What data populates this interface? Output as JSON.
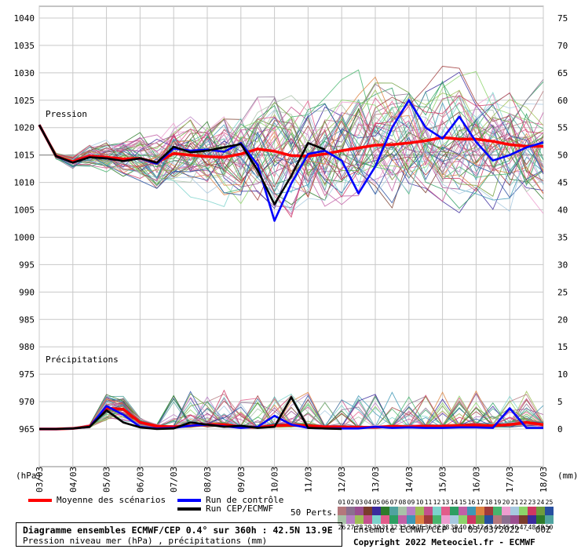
{
  "chart_data": {
    "type": "line",
    "title": "Diagramme ensembles ECMWF/CEP 0.4° sur 360h : 42.5N 13.9E",
    "subtitle": "Pression niveau mer (hPa) , précipitations (mm)",
    "run_info": "Ensemble ECMWF/CEP du 03/03/2022 - 00Z",
    "copyright": "Copyright 2022 Meteociel.fr - ECMWF",
    "left_axis_unit": "(hPa)",
    "right_axis_unit": "(mm)",
    "panel_label_pressure": "Pression",
    "panel_label_precip": "Précipitations",
    "x_ticks": [
      "03/03",
      "04/03",
      "05/03",
      "06/03",
      "07/03",
      "08/03",
      "09/03",
      "10/03",
      "11/03",
      "12/03",
      "13/03",
      "14/03",
      "15/03",
      "16/03",
      "17/03",
      "18/03"
    ],
    "left_ticks": [
      965,
      970,
      975,
      980,
      985,
      990,
      995,
      1000,
      1005,
      1010,
      1015,
      1020,
      1025,
      1030,
      1035,
      1040
    ],
    "right_ticks": [
      0,
      5,
      10,
      15,
      20,
      25,
      30,
      35,
      40,
      45,
      50,
      55,
      60,
      65,
      70,
      75
    ],
    "pressure_ylim": [
      965,
      1040
    ],
    "precip_ylim": [
      0,
      15
    ],
    "days_x": [
      0,
      0.5,
      1,
      1.5,
      2,
      2.5,
      3,
      3.5,
      4,
      4.5,
      5,
      5.5,
      6,
      6.5,
      7,
      7.5,
      8,
      8.5,
      9,
      9.5,
      10,
      10.5,
      11,
      11.5,
      12,
      12.5,
      13,
      13.5,
      14,
      14.5,
      15
    ],
    "series": [
      {
        "name": "Moyenne des scénarios",
        "color": "#ff0000",
        "panel": "pressure",
        "values": [
          1020.5,
          1014.8,
          1013.8,
          1014.8,
          1014.6,
          1014.3,
          1014.4,
          1013.6,
          1015.3,
          1015.0,
          1014.7,
          1014.6,
          1015.2,
          1016.1,
          1015.7,
          1014.9,
          1014.8,
          1015.2,
          1015.8,
          1016.3,
          1016.8,
          1016.9,
          1017.2,
          1017.6,
          1018.2,
          1017.9,
          1017.9,
          1017.5,
          1016.9,
          1016.6,
          1016.6
        ]
      },
      {
        "name": "Run de contrôle",
        "color": "#0000ff",
        "panel": "pressure",
        "values": [
          1020.5,
          1014.8,
          1013.6,
          1014.6,
          1014.4,
          1013.9,
          1014.4,
          1013.4,
          1016.2,
          1015.8,
          1016.0,
          1015.6,
          1017.2,
          1013.2,
          1003.0,
          1009.8,
          1015.2,
          1015.8,
          1014.0,
          1008.0,
          1012.9,
          1020.0,
          1025.0,
          1020.0,
          1018.0,
          1022.0,
          1017.4,
          1014.0,
          1015.0,
          1016.4,
          1017.3
        ]
      },
      {
        "name": "Run CEP/ECMWF",
        "color": "#000000",
        "panel": "pressure",
        "values": [
          1020.5,
          1014.8,
          1013.6,
          1014.6,
          1014.4,
          1013.9,
          1014.4,
          1013.6,
          1016.5,
          1015.5,
          1015.8,
          1016.4,
          1017.0,
          1012.2,
          1006.0,
          1011.2,
          1017.2,
          1016.0
        ]
      },
      {
        "name": "Moyenne des scénarios",
        "color": "#ff0000",
        "panel": "precip",
        "values": [
          0,
          0,
          0.1,
          0.5,
          3.8,
          3.6,
          1.2,
          0.5,
          0.4,
          0.6,
          0.8,
          0.8,
          0.4,
          0.3,
          0.6,
          0.7,
          0.6,
          0.4,
          0.4,
          0.3,
          0.3,
          0.5,
          0.4,
          0.5,
          0.5,
          0.6,
          0.7,
          0.6,
          0.8,
          1.2,
          0.8
        ]
      },
      {
        "name": "Run de contrôle",
        "color": "#0000ff",
        "panel": "precip",
        "values": [
          0,
          0,
          0.1,
          0.4,
          4.2,
          2.6,
          0.4,
          0.1,
          0.2,
          0.6,
          0.8,
          0.5,
          0.2,
          0.4,
          2.4,
          0.8,
          0.2,
          0.1,
          0.1,
          0.1,
          0.4,
          0.2,
          0.3,
          0.2,
          0.2,
          0.3,
          0.3,
          0.2,
          3.8,
          0.2,
          0.2
        ]
      },
      {
        "name": "Run CEP/ECMWF",
        "color": "#000000",
        "panel": "precip",
        "values": [
          0,
          0,
          0.1,
          0.4,
          3.4,
          1.2,
          0.3,
          0,
          0.1,
          1.2,
          0.8,
          0.4,
          0.6,
          0.2,
          0.4,
          5.8,
          0.2,
          0.1,
          0
        ]
      }
    ],
    "legend": [
      "Moyenne des scénarios",
      "Run de contrôle",
      "Run CEP/ECMWF"
    ],
    "perturbations_label": "50 Perts.",
    "perturbation_ids_row1": [
      "01",
      "02",
      "03",
      "04",
      "05",
      "06",
      "07",
      "08",
      "09",
      "10",
      "11",
      "12",
      "13",
      "14",
      "15",
      "16",
      "17",
      "18",
      "19",
      "20",
      "21",
      "22",
      "23",
      "24",
      "25"
    ],
    "perturbation_ids_row2": [
      "26",
      "27",
      "28",
      "29",
      "30",
      "31",
      "32",
      "33",
      "34",
      "35",
      "36",
      "37",
      "38",
      "39",
      "40",
      "41",
      "42",
      "43",
      "44",
      "45",
      "46",
      "47",
      "48",
      "49",
      "50"
    ],
    "perturbation_colors": [
      "#b4787c",
      "#8b6f8f",
      "#9b4e8f",
      "#7a3c2c",
      "#3b2a9c",
      "#2e7b2b",
      "#4fa39f",
      "#a8c2a8",
      "#b87fc4",
      "#9ebf56",
      "#c4508c",
      "#7cd3cc",
      "#e25c8a",
      "#2d9e62",
      "#c25fa6",
      "#3e97b5",
      "#dd8240",
      "#a03b3b",
      "#46b56d",
      "#ed9dcf",
      "#a7c9e0",
      "#8cd36a",
      "#cf3663",
      "#6f9d3d",
      "#274fa0"
    ],
    "grid": true,
    "legend_position": "bottom-left"
  }
}
